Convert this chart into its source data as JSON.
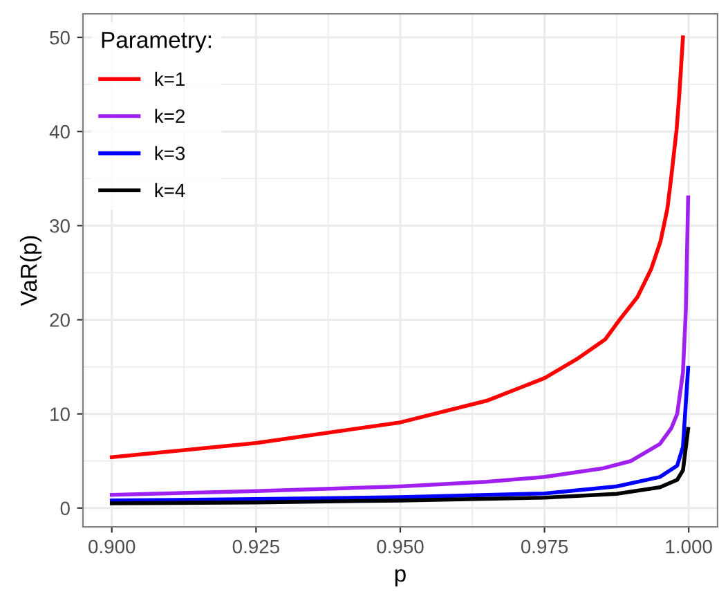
{
  "chart_data": {
    "type": "line",
    "xlabel": "p",
    "ylabel": "VaR(p)",
    "legend_title": "Parametry:",
    "legend": "top left",
    "grid": true,
    "line_style": "solid",
    "xlim": [
      0.895,
      1.005
    ],
    "xticks": [
      {
        "value": 0.9,
        "label": "0.900"
      },
      {
        "value": 0.925,
        "label": "0.925"
      },
      {
        "value": 0.95,
        "label": "0.950"
      },
      {
        "value": 0.975,
        "label": "0.975"
      },
      {
        "value": 1.0,
        "label": "1.000"
      }
    ],
    "ylim": [
      -2,
      52.5
    ],
    "yticks": [
      0,
      10,
      20,
      30,
      40,
      50
    ],
    "series": [
      {
        "name": "k=1",
        "color": "#ff0000",
        "x": [
          0.9,
          0.925,
          0.95,
          0.965,
          0.975,
          0.9808,
          0.9855,
          0.9879,
          0.9911,
          0.9935,
          0.9951,
          0.9963,
          0.997,
          0.9979,
          0.9984,
          0.999
        ],
        "values": [
          5.4,
          6.9,
          9.1,
          11.4,
          13.8,
          15.9,
          17.9,
          19.9,
          22.4,
          25.4,
          28.3,
          31.8,
          35.3,
          40.2,
          44.2,
          50
        ]
      },
      {
        "name": "k=2",
        "color": "#a020f0",
        "x": [
          0.9,
          0.925,
          0.95,
          0.965,
          0.975,
          0.985,
          0.99,
          0.995,
          0.997,
          0.998,
          0.999,
          0.9995,
          0.9999
        ],
        "values": [
          1.4,
          1.8,
          2.3,
          2.8,
          3.3,
          4.2,
          5.0,
          6.8,
          8.5,
          10,
          14.4,
          21,
          33
        ]
      },
      {
        "name": "k=3",
        "color": "#0000ff",
        "x": [
          0.9,
          0.925,
          0.95,
          0.975,
          0.9875,
          0.995,
          0.998,
          0.999,
          0.9999
        ],
        "values": [
          0.8,
          0.95,
          1.15,
          1.55,
          2.3,
          3.3,
          4.5,
          6.5,
          14.9
        ]
      },
      {
        "name": "k=4",
        "color": "#000000",
        "x": [
          0.9,
          0.925,
          0.95,
          0.975,
          0.9875,
          0.995,
          0.998,
          0.999,
          0.9999
        ],
        "values": [
          0.5,
          0.6,
          0.8,
          1.1,
          1.5,
          2.2,
          3.0,
          4.0,
          8.4
        ]
      }
    ]
  }
}
